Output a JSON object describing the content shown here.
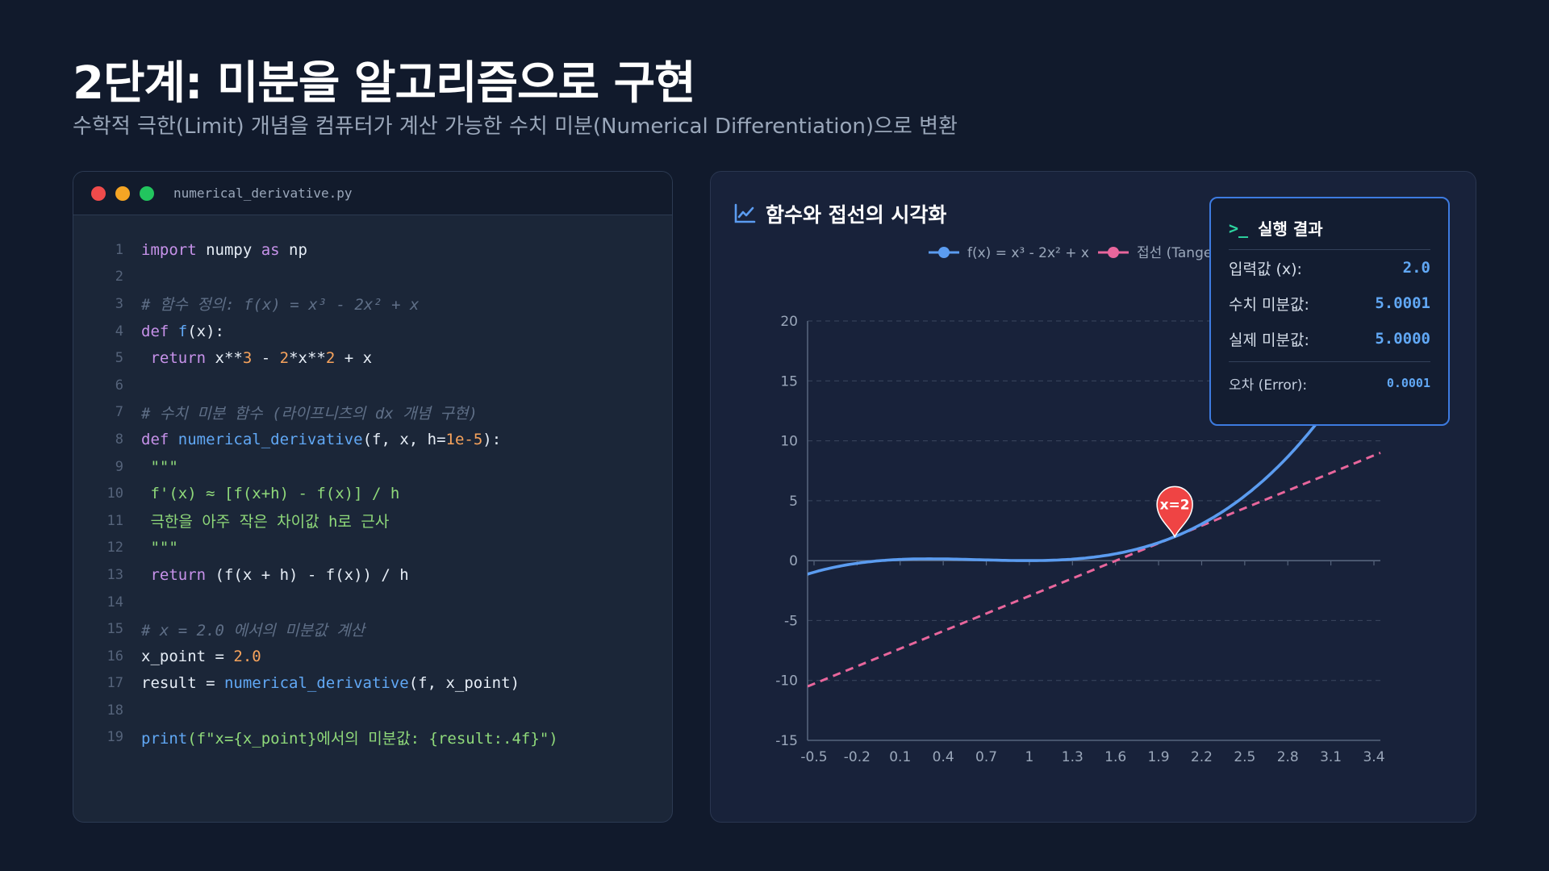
{
  "header": {
    "title": "2단계: 미분을 알고리즘으로 구현",
    "subtitle": "수학적 극한(Limit) 개념을 컴퓨터가 계산 가능한 수치 미분(Numerical Differentiation)으로 변환"
  },
  "code_panel": {
    "filename": "numerical_derivative.py",
    "lines": [
      [
        [
          "keyword",
          "import"
        ],
        [
          "plain",
          " numpy "
        ],
        [
          "keyword",
          "as"
        ],
        [
          "plain",
          " np"
        ]
      ],
      [],
      [
        [
          "comment",
          "# 함수 정의: f(x) = x³ - 2x² + x"
        ]
      ],
      [
        [
          "keyword",
          "def"
        ],
        [
          "plain",
          " "
        ],
        [
          "func",
          "f"
        ],
        [
          "plain",
          "(x):"
        ]
      ],
      [
        [
          "plain",
          " "
        ],
        [
          "keyword",
          "return"
        ],
        [
          "plain",
          " x**"
        ],
        [
          "number",
          "3"
        ],
        [
          "plain",
          " - "
        ],
        [
          "number",
          "2"
        ],
        [
          "plain",
          "*x**"
        ],
        [
          "number",
          "2"
        ],
        [
          "plain",
          " + x"
        ]
      ],
      [],
      [
        [
          "comment",
          "# 수치 미분 함수 (라이프니츠의 dx 개념 구현)"
        ]
      ],
      [
        [
          "keyword",
          "def"
        ],
        [
          "plain",
          " "
        ],
        [
          "func",
          "numerical_derivative"
        ],
        [
          "plain",
          "(f, x, h="
        ],
        [
          "number",
          "1e-5"
        ],
        [
          "plain",
          "):"
        ]
      ],
      [
        [
          "string",
          " \"\"\""
        ]
      ],
      [
        [
          "string",
          " f'(x) ≈ [f(x+h) - f(x)] / h"
        ]
      ],
      [
        [
          "string",
          " 극한을 아주 작은 차이값 h로 근사"
        ]
      ],
      [
        [
          "string",
          " \"\"\""
        ]
      ],
      [
        [
          "plain",
          " "
        ],
        [
          "keyword",
          "return"
        ],
        [
          "plain",
          " (f(x + h) - f(x)) / h"
        ]
      ],
      [],
      [
        [
          "comment",
          "# x = 2.0 에서의 미분값 계산"
        ]
      ],
      [
        [
          "plain",
          "x_point = "
        ],
        [
          "number",
          "2.0"
        ]
      ],
      [
        [
          "plain",
          "result = "
        ],
        [
          "func",
          "numerical_derivative"
        ],
        [
          "plain",
          "(f, x_point)"
        ]
      ],
      [],
      [
        [
          "func",
          "print"
        ],
        [
          "string",
          "(f\"x={x_point}에서의 미분값: {result:.4f}\")"
        ]
      ]
    ]
  },
  "chart_panel": {
    "title": "함수와 접선의 시각화",
    "marker_label": "x=2"
  },
  "chart_data": {
    "type": "line",
    "xlabel": "",
    "ylabel": "",
    "x_ticks": [
      "-0.5",
      "-0.2",
      "0.1",
      "0.4",
      "0.7",
      "1",
      "1.3",
      "1.6",
      "1.9",
      "2.2",
      "2.5",
      "2.8",
      "3.1",
      "3.4"
    ],
    "x_range": [
      -0.5,
      3.4
    ],
    "y_ticks": [
      20,
      15,
      10,
      5,
      0,
      -5,
      -10,
      -15
    ],
    "ylim": [
      -15,
      20
    ],
    "grid": true,
    "legend_position": "top",
    "series": [
      {
        "name": "f(x) = x³ - 2x² + x",
        "function": "x^3 - 2x^2 + x",
        "color": "#5b9cf0",
        "style": "solid"
      },
      {
        "name": "접선 (Tangent Line)",
        "function": "5x - 8",
        "color": "#e8669c",
        "style": "dashed"
      }
    ],
    "highlight_point": {
      "x": 2,
      "y": 2,
      "label": "x=2",
      "color": "#ef4444"
    }
  },
  "result_card": {
    "title": "실행 결과",
    "rows": [
      {
        "label": "입력값 (x):",
        "value": "2.0"
      },
      {
        "label": "수치 미분값:",
        "value": "5.0001"
      },
      {
        "label": "실제 미분값:",
        "value": "5.0000"
      }
    ],
    "error": {
      "label": "오차 (Error):",
      "value": "0.0001"
    }
  },
  "colors": {
    "background": "#111a2c",
    "accent": "#3d7be0",
    "curve": "#5b9cf0",
    "tangent": "#e8669c",
    "marker": "#ef4444"
  }
}
